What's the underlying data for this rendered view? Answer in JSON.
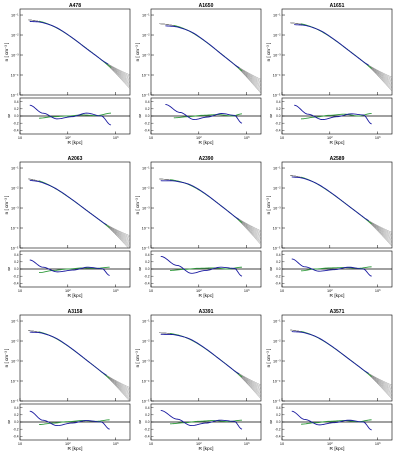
{
  "chart_data": {
    "type": "line",
    "panel_titles": [
      "A478",
      "A1650",
      "A1651",
      "A2063",
      "A2390",
      "A2589",
      "A3158",
      "A3391",
      "A3571"
    ],
    "top_axis": {
      "ylabel": "n [ cm⁻³ ]",
      "scale": "log",
      "ytick_labels": [
        "10⁻¹",
        "10⁻²",
        "10⁻³",
        "10⁻⁴",
        "10⁻⁵"
      ],
      "ylim": [
        1e-05,
        0.2
      ]
    },
    "bottom_axis": {
      "ylabel": "δ",
      "ytick_labels": [
        "0.4",
        "0.2",
        "0.0",
        "-0.2",
        "-0.4"
      ],
      "ylim": [
        -0.5,
        0.5
      ]
    },
    "x_axis": {
      "xlabel": "R [kpc]",
      "scale": "log",
      "xtick_labels": [
        "10",
        "10²",
        "10³"
      ],
      "xlim": [
        10,
        2000
      ]
    },
    "series": [
      {
        "name": "",
        "role": "model-band",
        "color": "#808080"
      },
      {
        "name": "",
        "role": "profile-1",
        "color": "#1a1aa0"
      },
      {
        "name": "",
        "role": "profile-2",
        "color": "#2e9a3a"
      },
      {
        "name": "",
        "role": "reference",
        "color": "#000000"
      }
    ],
    "panels": [
      {
        "ne0": 0.065,
        "rc": 40,
        "beta": 0.62,
        "blue_range": [
          16,
          700
        ],
        "green_range": [
          25,
          800
        ],
        "blue_delta": {
          "x": [
            16,
            30,
            60,
            120,
            250,
            500,
            800
          ],
          "y": [
            0.3,
            0.08,
            -0.08,
            -0.02,
            0.08,
            0.0,
            -0.25
          ]
        },
        "green_delta": {
          "x": [
            25,
            50,
            100,
            200,
            400,
            800
          ],
          "y": [
            -0.06,
            -0.02,
            0.0,
            0.03,
            0.01,
            0.08
          ]
        }
      },
      {
        "ne0": 0.04,
        "rc": 50,
        "beta": 0.66,
        "blue_range": [
          20,
          700
        ],
        "green_range": [
          30,
          800
        ],
        "blue_delta": {
          "x": [
            20,
            40,
            80,
            150,
            300,
            550,
            800
          ],
          "y": [
            0.32,
            0.1,
            -0.1,
            -0.03,
            0.07,
            0.02,
            -0.2
          ]
        },
        "green_delta": {
          "x": [
            30,
            60,
            120,
            250,
            500,
            800
          ],
          "y": [
            -0.05,
            -0.02,
            0.02,
            0.04,
            0.0,
            0.06
          ]
        }
      },
      {
        "ne0": 0.045,
        "rc": 45,
        "beta": 0.63,
        "blue_range": [
          18,
          650
        ],
        "green_range": [
          25,
          750
        ],
        "blue_delta": {
          "x": [
            18,
            35,
            70,
            140,
            280,
            500,
            750
          ],
          "y": [
            0.3,
            0.05,
            -0.1,
            -0.02,
            0.06,
            0.03,
            -0.22
          ]
        },
        "green_delta": {
          "x": [
            25,
            50,
            100,
            200,
            400,
            750
          ],
          "y": [
            -0.08,
            -0.03,
            0.02,
            0.05,
            0.0,
            0.07
          ]
        }
      },
      {
        "ne0": 0.035,
        "rc": 30,
        "beta": 0.6,
        "blue_range": [
          16,
          650
        ],
        "green_range": [
          25,
          750
        ],
        "blue_delta": {
          "x": [
            16,
            30,
            60,
            130,
            260,
            520,
            750
          ],
          "y": [
            0.25,
            0.05,
            -0.08,
            -0.03,
            0.05,
            0.01,
            -0.18
          ]
        },
        "green_delta": {
          "x": [
            25,
            50,
            100,
            200,
            400,
            750
          ],
          "y": [
            -0.1,
            -0.04,
            0.0,
            0.03,
            0.02,
            0.05
          ]
        }
      },
      {
        "ne0": 0.03,
        "rc": 60,
        "beta": 0.65,
        "blue_range": [
          16,
          700
        ],
        "green_range": [
          25,
          800
        ],
        "blue_delta": {
          "x": [
            16,
            35,
            70,
            140,
            280,
            550,
            800
          ],
          "y": [
            0.35,
            0.1,
            -0.12,
            -0.04,
            0.05,
            0.02,
            -0.2
          ]
        },
        "green_delta": {
          "x": [
            25,
            50,
            100,
            200,
            400,
            800
          ],
          "y": [
            -0.04,
            -0.01,
            0.02,
            0.03,
            0.0,
            0.05
          ]
        }
      },
      {
        "ne0": 0.05,
        "rc": 35,
        "beta": 0.62,
        "blue_range": [
          16,
          650
        ],
        "green_range": [
          25,
          750
        ],
        "blue_delta": {
          "x": [
            16,
            30,
            60,
            120,
            250,
            500,
            750
          ],
          "y": [
            0.28,
            0.06,
            -0.06,
            -0.02,
            0.05,
            0.0,
            -0.2
          ]
        },
        "green_delta": {
          "x": [
            25,
            50,
            100,
            200,
            400,
            750
          ],
          "y": [
            -0.05,
            0.0,
            0.03,
            0.04,
            0.02,
            0.06
          ]
        }
      },
      {
        "ne0": 0.038,
        "rc": 40,
        "beta": 0.64,
        "blue_range": [
          16,
          650
        ],
        "green_range": [
          25,
          750
        ],
        "blue_delta": {
          "x": [
            16,
            30,
            60,
            120,
            250,
            500,
            750
          ],
          "y": [
            0.3,
            0.05,
            -0.1,
            -0.03,
            0.04,
            0.0,
            -0.2
          ]
        },
        "green_delta": {
          "x": [
            25,
            50,
            100,
            200,
            400,
            750
          ],
          "y": [
            -0.07,
            -0.03,
            0.01,
            0.04,
            0.02,
            0.06
          ]
        }
      },
      {
        "ne0": 0.028,
        "rc": 55,
        "beta": 0.64,
        "blue_range": [
          16,
          700
        ],
        "green_range": [
          25,
          800
        ],
        "blue_delta": {
          "x": [
            16,
            35,
            70,
            140,
            280,
            550,
            800
          ],
          "y": [
            0.32,
            0.08,
            -0.1,
            -0.03,
            0.05,
            0.02,
            -0.2
          ]
        },
        "green_delta": {
          "x": [
            25,
            50,
            100,
            200,
            400,
            800
          ],
          "y": [
            -0.05,
            -0.02,
            0.02,
            0.04,
            0.01,
            0.05
          ]
        }
      },
      {
        "ne0": 0.04,
        "rc": 40,
        "beta": 0.62,
        "blue_range": [
          16,
          650
        ],
        "green_range": [
          25,
          750
        ],
        "blue_delta": {
          "x": [
            16,
            30,
            60,
            120,
            250,
            500,
            750
          ],
          "y": [
            0.3,
            0.07,
            -0.08,
            -0.02,
            0.05,
            0.0,
            -0.22
          ]
        },
        "green_delta": {
          "x": [
            25,
            50,
            100,
            200,
            400,
            750
          ],
          "y": [
            -0.06,
            -0.02,
            0.02,
            0.04,
            0.01,
            0.06
          ]
        }
      }
    ]
  }
}
